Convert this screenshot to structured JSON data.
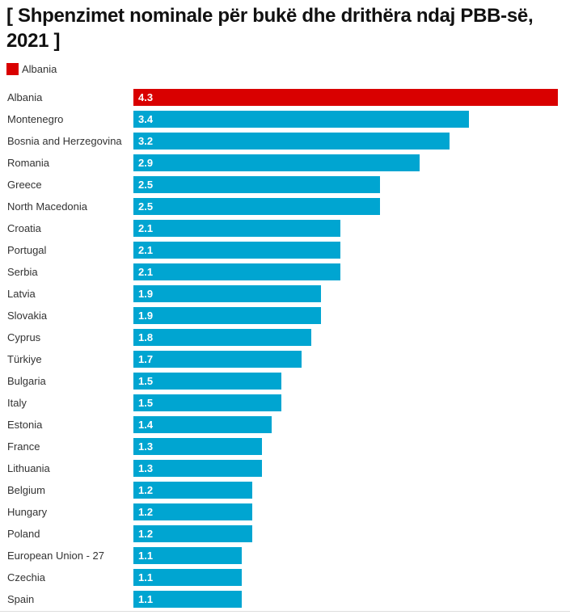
{
  "chart_data": {
    "type": "bar",
    "orientation": "horizontal",
    "title": "[ Shpenzimet nominale për bukë dhe drithëra ndaj PBB-së, 2021 ]",
    "xlabel": "",
    "ylabel": "",
    "grid": false,
    "legend": {
      "placement": "top-left",
      "entries": [
        {
          "label": "Albania",
          "color": "#d90000"
        }
      ]
    },
    "colors": {
      "highlight": "#d90000",
      "default": "#00a5d1"
    },
    "xlim": [
      0,
      4.3
    ],
    "categories": [
      "Albania",
      "Montenegro",
      "Bosnia and Herzegovina",
      "Romania",
      "Greece",
      "North Macedonia",
      "Croatia",
      "Portugal",
      "Serbia",
      "Latvia",
      "Slovakia",
      "Cyprus",
      "Türkiye",
      "Bulgaria",
      "Italy",
      "Estonia",
      "France",
      "Lithuania",
      "Belgium",
      "Hungary",
      "Poland",
      "European Union - 27",
      "Czechia",
      "Spain"
    ],
    "values": [
      4.3,
      3.4,
      3.2,
      2.9,
      2.5,
      2.5,
      2.1,
      2.1,
      2.1,
      1.9,
      1.9,
      1.8,
      1.7,
      1.5,
      1.5,
      1.4,
      1.3,
      1.3,
      1.2,
      1.2,
      1.2,
      1.1,
      1.1,
      1.1
    ],
    "value_labels": [
      "4.3",
      "3.4",
      "3.2",
      "2.9",
      "2.5",
      "2.5",
      "2.1",
      "2.1",
      "2.1",
      "1.9",
      "1.9",
      "1.8",
      "1.7",
      "1.5",
      "1.5",
      "1.4",
      "1.3",
      "1.3",
      "1.2",
      "1.2",
      "1.2",
      "1.1",
      "1.1",
      "1.1"
    ],
    "highlighted": [
      "Albania"
    ]
  }
}
